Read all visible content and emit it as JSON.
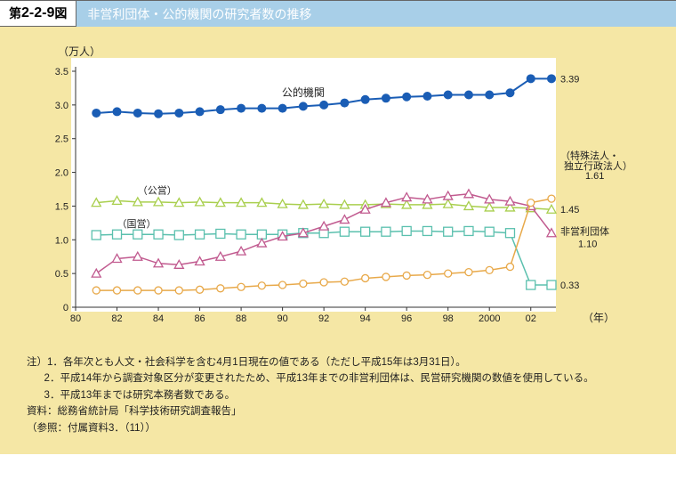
{
  "header": {
    "badge_prefix": "第 ",
    "badge_num": "2-2-9",
    "badge_suffix": " 図",
    "title": "非営利団体・公的機関の研究者数の推移",
    "title_bg": "#a8cfe8"
  },
  "chart": {
    "type": "line",
    "bg_page": "#f5e7a5",
    "bg_plot": "#ffffff",
    "y_unit_label": "（万人）",
    "x_label": "（年）",
    "ylim": [
      0,
      3.5
    ],
    "ytick_step": 0.5,
    "yticks": [
      "0",
      "0.5",
      "1.0",
      "1.5",
      "2.0",
      "2.5",
      "3.0",
      "3.5"
    ],
    "xlim": [
      80,
      103
    ],
    "xticks": [
      80,
      82,
      84,
      86,
      88,
      90,
      92,
      94,
      96,
      98,
      2000,
      "02"
    ],
    "xtick_pos": [
      80,
      82,
      84,
      86,
      88,
      90,
      92,
      94,
      96,
      98,
      100,
      102
    ],
    "label_fontsize": 12,
    "tick_fontsize": 11,
    "axis_color": "#333333",
    "series": {
      "koteki": {
        "label": "公的機関",
        "label_pos": "inline",
        "end_label": "3.39",
        "color": "#1a5db5",
        "marker": "circle-filled",
        "marker_size": 5,
        "line_width": 2,
        "x": [
          81,
          82,
          83,
          84,
          85,
          86,
          87,
          88,
          89,
          90,
          91,
          92,
          93,
          94,
          95,
          96,
          97,
          98,
          99,
          100,
          101,
          102,
          103
        ],
        "y": [
          2.88,
          2.9,
          2.88,
          2.87,
          2.88,
          2.9,
          2.93,
          2.95,
          2.95,
          2.95,
          2.98,
          3.0,
          3.03,
          3.08,
          3.1,
          3.12,
          3.13,
          3.15,
          3.15,
          3.15,
          3.18,
          3.39,
          3.39
        ]
      },
      "koei": {
        "label": "（公営）",
        "label_pos": "left",
        "end_label": "1.45",
        "color": "#a9cf4e",
        "marker": "triangle-open",
        "marker_size": 5,
        "line_width": 1.5,
        "x": [
          81,
          82,
          83,
          84,
          85,
          86,
          87,
          88,
          89,
          90,
          91,
          92,
          93,
          94,
          95,
          96,
          97,
          98,
          99,
          100,
          101,
          102,
          103
        ],
        "y": [
          1.55,
          1.58,
          1.56,
          1.56,
          1.55,
          1.56,
          1.55,
          1.55,
          1.55,
          1.53,
          1.52,
          1.53,
          1.52,
          1.52,
          1.53,
          1.52,
          1.52,
          1.53,
          1.5,
          1.48,
          1.48,
          1.47,
          1.45
        ]
      },
      "kokuei": {
        "label": "（国営）",
        "label_pos": "left",
        "end_label": "0.33",
        "color": "#5bc0ae",
        "marker": "square-open",
        "marker_size": 5,
        "line_width": 1.5,
        "x": [
          81,
          82,
          83,
          84,
          85,
          86,
          87,
          88,
          89,
          90,
          91,
          92,
          93,
          94,
          95,
          96,
          97,
          98,
          99,
          100,
          101,
          102,
          103
        ],
        "y": [
          1.07,
          1.08,
          1.08,
          1.08,
          1.07,
          1.08,
          1.09,
          1.08,
          1.08,
          1.08,
          1.1,
          1.1,
          1.12,
          1.12,
          1.12,
          1.13,
          1.13,
          1.12,
          1.13,
          1.12,
          1.1,
          0.33,
          0.33
        ]
      },
      "hieiri": {
        "label": "非営利団体",
        "label_pos": "right",
        "end_label": "1.10",
        "color": "#c15a8f",
        "marker": "triangle-open",
        "marker_size": 5,
        "line_width": 1.5,
        "x": [
          81,
          82,
          83,
          84,
          85,
          86,
          87,
          88,
          89,
          90,
          91,
          92,
          93,
          94,
          95,
          96,
          97,
          98,
          99,
          100,
          101,
          102,
          103
        ],
        "y": [
          0.5,
          0.72,
          0.75,
          0.65,
          0.63,
          0.68,
          0.75,
          0.83,
          0.95,
          1.05,
          1.1,
          1.2,
          1.3,
          1.45,
          1.55,
          1.63,
          1.6,
          1.65,
          1.68,
          1.6,
          1.57,
          1.5,
          1.1
        ]
      },
      "tokushu": {
        "label": "（特殊法人・独立行政法人）",
        "label_pos": "right-top",
        "end_label": "1.61",
        "color": "#e8a94a",
        "marker": "circle-open",
        "marker_size": 4,
        "line_width": 1.5,
        "x": [
          81,
          82,
          83,
          84,
          85,
          86,
          87,
          88,
          89,
          90,
          91,
          92,
          93,
          94,
          95,
          96,
          97,
          98,
          99,
          100,
          101,
          102,
          103
        ],
        "y": [
          0.25,
          0.25,
          0.25,
          0.25,
          0.25,
          0.26,
          0.28,
          0.3,
          0.32,
          0.33,
          0.35,
          0.37,
          0.38,
          0.43,
          0.45,
          0.47,
          0.48,
          0.5,
          0.52,
          0.55,
          0.6,
          1.55,
          1.61
        ]
      }
    }
  },
  "notes": {
    "n1": "注）1．各年次とも人文・社会科学を含む4月1日現在の値である（ただし平成15年は3月31日）。",
    "n2": "2．平成14年から調査対象区分が変更されたため、平成13年までの非営利団体は、民営研究機関の数値を使用している。",
    "n3": "3．平成13年までは研究本務者数である。",
    "src": "資料：総務省統計局「科学技術研究調査報告」",
    "ref": "（参照：付属資料3．（11））"
  }
}
